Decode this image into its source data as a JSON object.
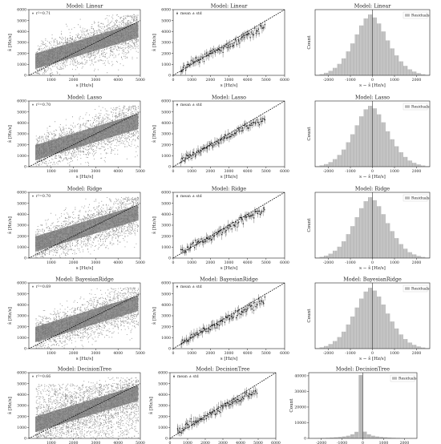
{
  "chart_data": [
    {
      "type": "scatter",
      "variant": "raw",
      "title": "Model: Linear",
      "xlabel": "s  [Hz/s]",
      "ylabel": "ŝ  [Hz/s]",
      "xlim": [
        0,
        5000
      ],
      "ylim": [
        0,
        6000
      ],
      "xticks": [
        1000,
        2000,
        3000,
        4000,
        5000
      ],
      "yticks": [
        0,
        1000,
        2000,
        3000,
        4000,
        5000,
        6000
      ],
      "legend": "r²=0.71",
      "legend_position": "top-left",
      "identity_line": true
    },
    {
      "type": "scatter",
      "variant": "mean_std",
      "title": "Model: Linear",
      "xlabel": "s  [Hz/s]",
      "ylabel": "ŝ  [Hz/s]",
      "xlim": [
        0,
        6000
      ],
      "ylim": [
        0,
        6000
      ],
      "xticks": [
        0,
        1000,
        2000,
        3000,
        4000,
        5000,
        6000
      ],
      "yticks": [
        0,
        1000,
        2000,
        3000,
        4000,
        5000,
        6000
      ],
      "legend": "mean ± std",
      "legend_position": "top-left",
      "identity_line": true
    },
    {
      "type": "bar",
      "variant": "histogram",
      "title": "Model: Linear",
      "xlabel": "s − ŝ  [Hz/s]",
      "ylabel": "Count",
      "xlim": [
        -2600,
        2600
      ],
      "xticks": [
        -2000,
        -1000,
        0,
        1000,
        2000
      ],
      "bin_centers": [
        -2500,
        -2300,
        -2100,
        -1900,
        -1700,
        -1500,
        -1300,
        -1100,
        -900,
        -700,
        -500,
        -300,
        -100,
        100,
        300,
        500,
        700,
        900,
        1100,
        1300,
        1500,
        1700,
        1900,
        2100,
        2300,
        2500
      ],
      "values": [
        0.5,
        1.2,
        2.5,
        4.5,
        7.5,
        11.5,
        17,
        24,
        32,
        41,
        50,
        57,
        61,
        58,
        52,
        44,
        35,
        27,
        20,
        14,
        9.5,
        6,
        3.8,
        2.2,
        1.1,
        0.5
      ],
      "legend": "Residuals",
      "legend_position": "top-right",
      "center_line": 0
    },
    {
      "type": "scatter",
      "variant": "raw",
      "title": "Model: Lasso",
      "xlabel": "s  [Hz/s]",
      "ylabel": "ŝ  [Hz/s]",
      "xlim": [
        0,
        5000
      ],
      "ylim": [
        0,
        6000
      ],
      "xticks": [
        1000,
        2000,
        3000,
        4000,
        5000
      ],
      "yticks": [
        0,
        1000,
        2000,
        3000,
        4000,
        5000,
        6000
      ],
      "legend": "r²=0.70",
      "legend_position": "top-left",
      "identity_line": true
    },
    {
      "type": "scatter",
      "variant": "mean_std",
      "title": "Model: Lasso",
      "xlabel": "s  [Hz/s]",
      "ylabel": "ŝ  [Hz/s]",
      "xlim": [
        0,
        6000
      ],
      "ylim": [
        0,
        6000
      ],
      "xticks": [
        0,
        1000,
        2000,
        3000,
        4000,
        5000,
        6000
      ],
      "yticks": [
        0,
        1000,
        2000,
        3000,
        4000,
        5000,
        6000
      ],
      "legend": "mean ± std",
      "legend_position": "top-left",
      "identity_line": true
    },
    {
      "type": "bar",
      "variant": "histogram",
      "title": "Model: Lasso",
      "xlabel": "s − ŝ  [Hz/s]",
      "ylabel": "Count",
      "xlim": [
        -2600,
        2600
      ],
      "xticks": [
        -2000,
        -1000,
        0,
        1000,
        2000
      ],
      "bin_centers": [
        -2500,
        -2300,
        -2100,
        -1900,
        -1700,
        -1500,
        -1300,
        -1100,
        -900,
        -700,
        -500,
        -300,
        -100,
        100,
        300,
        500,
        700,
        900,
        1100,
        1300,
        1500,
        1700,
        1900,
        2100,
        2300,
        2500
      ],
      "values": [
        0.5,
        1.3,
        2.6,
        4.6,
        7.6,
        11.8,
        17.2,
        24.5,
        32.5,
        41.5,
        50.5,
        57.5,
        61,
        58.5,
        52.5,
        44.5,
        35.5,
        27.5,
        20.5,
        14.5,
        9.8,
        6.2,
        3.9,
        2.3,
        1.2,
        0.5
      ],
      "legend": "Residuals",
      "legend_position": "top-right",
      "center_line": 0
    },
    {
      "type": "scatter",
      "variant": "raw",
      "title": "Model: Ridge",
      "xlabel": "s  [Hz/s]",
      "ylabel": "ŝ  [Hz/s]",
      "xlim": [
        0,
        5000
      ],
      "ylim": [
        0,
        6000
      ],
      "xticks": [
        1000,
        2000,
        3000,
        4000,
        5000
      ],
      "yticks": [
        0,
        1000,
        2000,
        3000,
        4000,
        5000,
        6000
      ],
      "legend": "r²=0.70",
      "legend_position": "top-left",
      "identity_line": true
    },
    {
      "type": "scatter",
      "variant": "mean_std",
      "title": "Model: Ridge",
      "xlabel": "s  [Hz/s]",
      "ylabel": "ŝ  [Hz/s]",
      "xlim": [
        0,
        6000
      ],
      "ylim": [
        0,
        6000
      ],
      "xticks": [
        0,
        1000,
        2000,
        3000,
        4000,
        5000,
        6000
      ],
      "yticks": [
        0,
        1000,
        2000,
        3000,
        4000,
        5000,
        6000
      ],
      "legend": "mean ± std",
      "legend_position": "top-left",
      "identity_line": true
    },
    {
      "type": "bar",
      "variant": "histogram",
      "title": "Model: Ridge",
      "xlabel": "s − ŝ  [Hz/s]",
      "ylabel": "Count",
      "xlim": [
        -2600,
        2600
      ],
      "xticks": [
        -2000,
        -1000,
        0,
        1000,
        2000
      ],
      "bin_centers": [
        -2500,
        -2300,
        -2100,
        -1900,
        -1700,
        -1500,
        -1300,
        -1100,
        -900,
        -700,
        -500,
        -300,
        -100,
        100,
        300,
        500,
        700,
        900,
        1100,
        1300,
        1500,
        1700,
        1900,
        2100,
        2300,
        2500
      ],
      "values": [
        0.5,
        1.2,
        2.4,
        4.4,
        7.4,
        11.4,
        16.8,
        24,
        32,
        41,
        50,
        57,
        61,
        58,
        52,
        44,
        35,
        27,
        20,
        14,
        9.4,
        5.9,
        3.7,
        2.1,
        1.1,
        0.5
      ],
      "legend": "Residuals",
      "legend_position": "top-right",
      "center_line": 0
    },
    {
      "type": "scatter",
      "variant": "raw",
      "title": "Model: BayesianRidge",
      "xlabel": "s  [Hz/s]",
      "ylabel": "ŝ  [Hz/s]",
      "xlim": [
        0,
        5000
      ],
      "ylim": [
        0,
        6000
      ],
      "xticks": [
        1000,
        2000,
        3000,
        4000,
        5000
      ],
      "yticks": [
        0,
        1000,
        2000,
        3000,
        4000,
        5000,
        6000
      ],
      "legend": "r²=0.69",
      "legend_position": "top-left",
      "identity_line": true
    },
    {
      "type": "scatter",
      "variant": "mean_std",
      "title": "Model: BayesianRidge",
      "xlabel": "s  [Hz/s]",
      "ylabel": "ŝ  [Hz/s]",
      "xlim": [
        0,
        6000
      ],
      "ylim": [
        0,
        6000
      ],
      "xticks": [
        0,
        1000,
        2000,
        3000,
        4000,
        5000,
        6000
      ],
      "yticks": [
        0,
        1000,
        2000,
        3000,
        4000,
        5000,
        6000
      ],
      "legend": "mean ± std",
      "legend_position": "top-left",
      "identity_line": true
    },
    {
      "type": "bar",
      "variant": "histogram",
      "title": "Model: BayesianRidge",
      "xlabel": "s − ŝ  [Hz/s]",
      "ylabel": "Count",
      "xlim": [
        -2600,
        2600
      ],
      "xticks": [
        -2000,
        -1000,
        0,
        1000,
        2000
      ],
      "bin_centers": [
        -2500,
        -2300,
        -2100,
        -1900,
        -1700,
        -1500,
        -1300,
        -1100,
        -900,
        -700,
        -500,
        -300,
        -100,
        100,
        300,
        500,
        700,
        900,
        1100,
        1300,
        1500,
        1700,
        1900,
        2100,
        2300,
        2500
      ],
      "values": [
        0.5,
        1.3,
        2.6,
        4.6,
        7.6,
        11.6,
        17,
        24.2,
        32.2,
        41.2,
        50.2,
        57.2,
        61,
        58.2,
        52.2,
        44.2,
        35.2,
        27.2,
        20.2,
        14.2,
        9.6,
        6.1,
        3.8,
        2.2,
        1.1,
        0.5
      ],
      "legend": "Residuals",
      "legend_position": "top-right",
      "center_line": 0
    },
    {
      "type": "scatter",
      "variant": "raw",
      "title": "Model: DecisionTree",
      "xlabel": "s  [Hz/s]",
      "ylabel": "ŝ  [Hz/s]",
      "xlim": [
        0,
        5000
      ],
      "ylim": [
        0,
        6000
      ],
      "xticks": [
        1000,
        2000,
        3000,
        4000,
        5000
      ],
      "yticks": [
        0,
        1000,
        2000,
        3000,
        4000,
        5000,
        6000
      ],
      "legend": "r²=0.66",
      "legend_position": "top-left",
      "identity_line": true
    },
    {
      "type": "scatter",
      "variant": "mean_std",
      "title": "Model: DecisionTree",
      "xlabel": "s  [Hz/s]",
      "ylabel": "ŝ  [Hz/s]",
      "xlim": [
        0,
        6000
      ],
      "ylim": [
        0,
        6000
      ],
      "xticks": [
        0,
        1000,
        2000,
        3000,
        4000,
        5000,
        6000
      ],
      "yticks": [
        0,
        1000,
        2000,
        3000,
        4000,
        5000,
        6000
      ],
      "legend": "mean ± std",
      "legend_position": "top-left",
      "identity_line": true
    },
    {
      "type": "bar",
      "variant": "histogram",
      "title": "Model: DecisionTree",
      "xlabel": "s − ŝ  [Hz/s]",
      "ylabel": "Count",
      "xlim": [
        -2600,
        2600
      ],
      "ylim": [
        0,
        42000
      ],
      "xticks": [
        -2000,
        -1000,
        0,
        1000,
        2000
      ],
      "yticks": [
        0,
        10000,
        20000,
        30000,
        40000
      ],
      "bin_centers": [
        -2500,
        -2300,
        -2100,
        -1900,
        -1700,
        -1500,
        -1300,
        -1100,
        -900,
        -700,
        -500,
        -300,
        -100,
        100,
        300,
        500,
        700,
        900,
        1100,
        1300,
        1500,
        1700,
        1900,
        2100,
        2300,
        2500
      ],
      "values": [
        150,
        200,
        260,
        330,
        420,
        540,
        700,
        900,
        1200,
        1700,
        2600,
        4200,
        40500,
        4300,
        2600,
        1700,
        1200,
        900,
        700,
        540,
        420,
        330,
        260,
        200,
        150,
        120
      ],
      "legend": "Residuals",
      "legend_position": "top-right",
      "center_line": 0
    }
  ]
}
